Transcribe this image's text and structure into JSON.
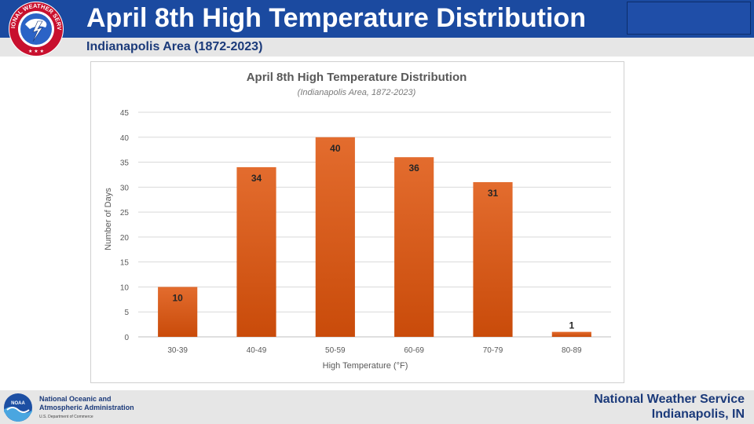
{
  "header": {
    "title": "April 8th High Temperature Distribution",
    "subtitle": "Indianapolis Area (1872-2023)",
    "colors": {
      "header_blue": "#1b4aa0",
      "subtitle_text": "#1b3a7a",
      "band_gray": "#e6e6e6"
    }
  },
  "logos": {
    "nws_text": "NATIONAL WEATHER SERVICE",
    "noaa_badge": "NOAA"
  },
  "footer": {
    "noaa_line1": "National Oceanic and",
    "noaa_line2": "Atmospheric Administration",
    "noaa_line3": "U.S. Department of Commerce",
    "office_line1": "National Weather Service",
    "office_line2": "Indianapolis, IN"
  },
  "chart_data": {
    "type": "bar",
    "title": "April 8th High Temperature Distribution",
    "subtitle": "(Indianapolis Area, 1872-2023)",
    "xlabel": "High Temperature (°F)",
    "ylabel": "Number of Days",
    "categories": [
      "30-39",
      "40-49",
      "50-59",
      "60-69",
      "70-79",
      "80-89"
    ],
    "values": [
      10,
      34,
      40,
      36,
      31,
      1
    ],
    "ylim": [
      0,
      45
    ],
    "yticks": [
      0,
      5,
      10,
      15,
      20,
      25,
      30,
      35,
      40,
      45
    ],
    "grid": true,
    "legend": "none",
    "bar_color_top": "#e36c2e",
    "bar_color_bottom": "#c94b0a"
  }
}
